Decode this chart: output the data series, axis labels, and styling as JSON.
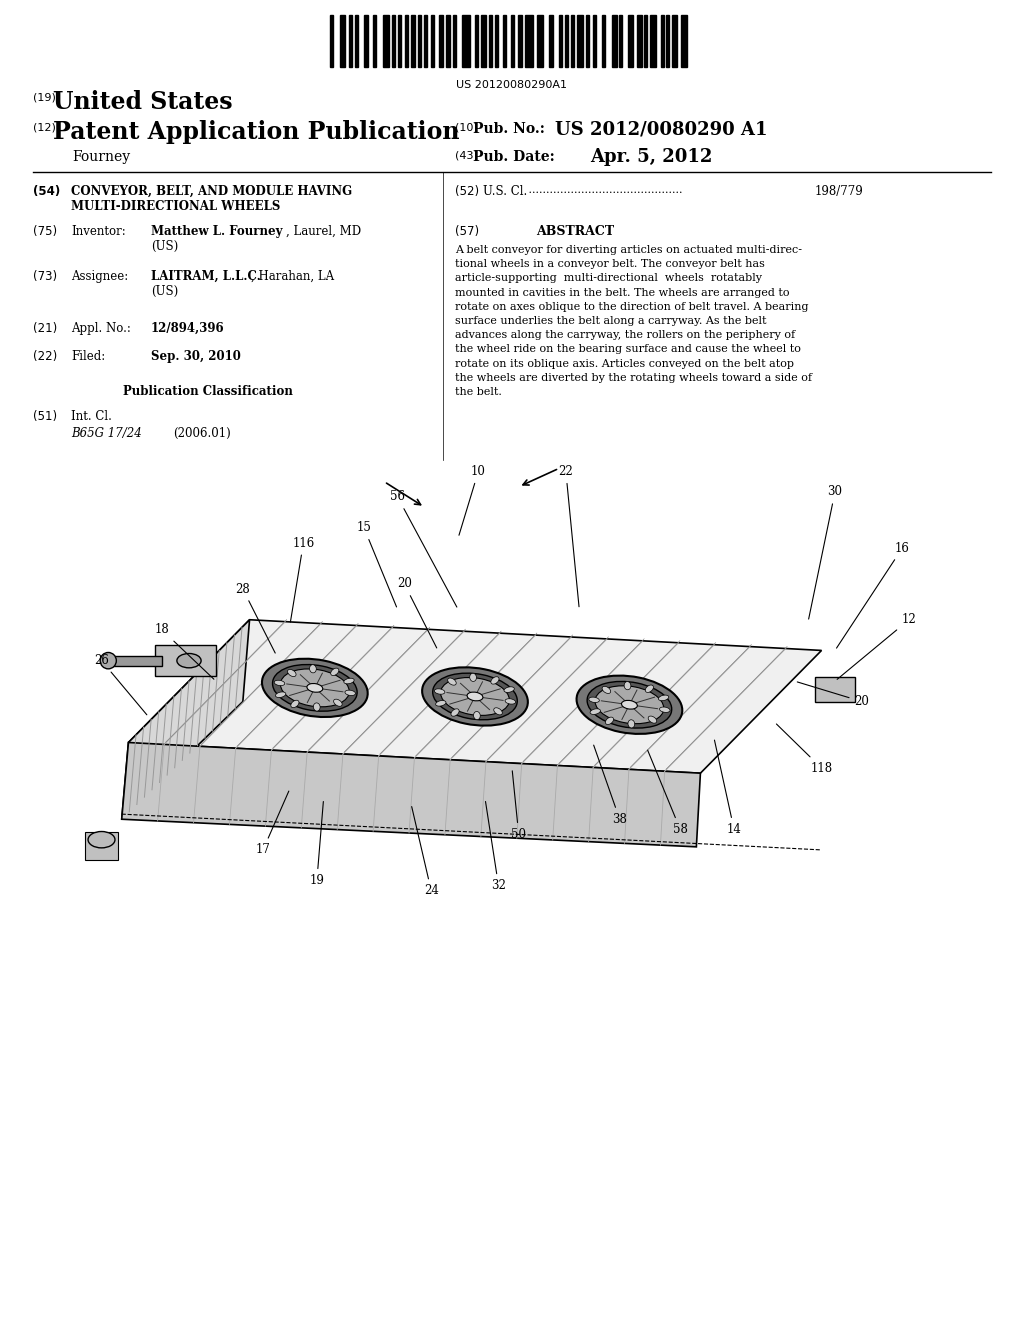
{
  "background_color": "#ffffff",
  "barcode_text": "US 20120080290A1",
  "tag_19": "(19)",
  "united_states": "United States",
  "tag_12": "(12)",
  "patent_app_pub": "Patent Application Publication",
  "tag_10": "(10)",
  "pub_no_label": "Pub. No.:",
  "pub_no_value": "US 2012/0080290 A1",
  "inventor_name": "Fourney",
  "tag_43": "(43)",
  "pub_date_label": "Pub. Date:",
  "pub_date_value": "Apr. 5, 2012",
  "tag_54": "(54)",
  "title_line1": "CONVEYOR, BELT, AND MODULE HAVING",
  "title_line2": "MULTI-DIRECTIONAL WHEELS",
  "tag_52": "(52)",
  "us_cl_label": "U.S. Cl.",
  "us_cl_value": "198/779",
  "tag_75": "(75)",
  "inventor_label": "Inventor:",
  "inventor_bold": "Matthew L. Fourney",
  "inventor_rest": ", Laurel, MD",
  "inventor_country": "(US)",
  "tag_57": "(57)",
  "abstract_title": "ABSTRACT",
  "tag_73": "(73)",
  "assignee_label": "Assignee:",
  "assignee_bold": "LAITRAM, L.L.C.",
  "assignee_rest": ", Harahan, LA",
  "assignee_country": "(US)",
  "tag_21": "(21)",
  "appl_no_label": "Appl. No.:",
  "appl_no_value": "12/894,396",
  "tag_22": "(22)",
  "filed_label": "Filed:",
  "filed_value": "Sep. 30, 2010",
  "pub_class_title": "Publication Classification",
  "tag_51": "(51)",
  "int_cl_label": "Int. Cl.",
  "int_cl_class": "B65G 17/24",
  "int_cl_year": "(2006.01)",
  "abstract_lines": [
    "A belt conveyor for diverting articles on actuated multi-direc-",
    "tional wheels in a conveyor belt. The conveyor belt has",
    "article-supporting  multi-directional  wheels  rotatably",
    "mounted in cavities in the belt. The wheels are arranged to",
    "rotate on axes oblique to the direction of belt travel. A bearing",
    "surface underlies the belt along a carryway. As the belt",
    "advances along the carryway, the rollers on the periphery of",
    "the wheel ride on the bearing surface and cause the wheel to",
    "rotate on its oblique axis. Articles conveyed on the belt atop",
    "the wheels are diverted by the rotating wheels toward a side of",
    "the belt."
  ]
}
